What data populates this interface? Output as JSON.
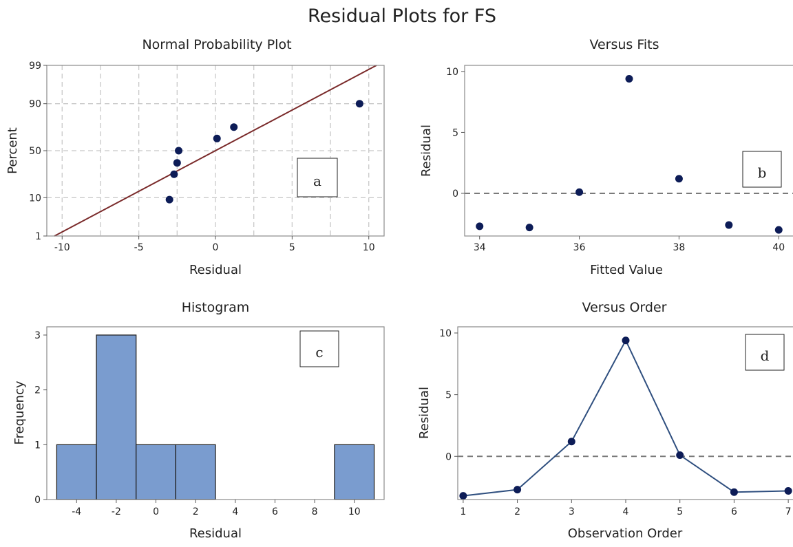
{
  "figure": {
    "title": "Residual Plots for FS"
  },
  "colors": {
    "point": "#0d1c57",
    "fit_line": "#7a2a2a",
    "bar_fill": "#7a9ccf",
    "bar_edge": "#222222",
    "line": "#2f4f7f"
  },
  "chart_data": [
    {
      "type": "scatter",
      "title": "Normal Probability Plot",
      "xlabel": "Residual",
      "ylabel": "Percent",
      "xlim": [
        -11,
        11
      ],
      "y_scale": "normal probability",
      "yticks": [
        1,
        10,
        50,
        90,
        99
      ],
      "xticks": [
        -10,
        -5,
        0,
        5,
        10
      ],
      "grid": true,
      "points": [
        {
          "x": -3.0,
          "y": 9.1
        },
        {
          "x": -2.7,
          "y": 26.0
        },
        {
          "x": -2.5,
          "y": 37.0
        },
        {
          "x": -2.4,
          "y": 50.0
        },
        {
          "x": 0.1,
          "y": 63.0
        },
        {
          "x": 1.2,
          "y": 74.0
        },
        {
          "x": 9.4,
          "y": 90.0
        }
      ],
      "fit_line": {
        "x": [
          -10.5,
          10.5
        ],
        "y": [
          1,
          99
        ]
      },
      "annotation": "a"
    },
    {
      "type": "scatter",
      "title": "Versus Fits",
      "xlabel": "Fitted Value",
      "ylabel": "Residual",
      "xlim": [
        33.7,
        40.3
      ],
      "ylim": [
        -3.5,
        10.5
      ],
      "xticks": [
        34,
        36,
        38,
        40
      ],
      "yticks": [
        0,
        5,
        10
      ],
      "reference_line": 0,
      "points": [
        {
          "x": 34,
          "y": -2.7
        },
        {
          "x": 35,
          "y": -2.8
        },
        {
          "x": 36,
          "y": 0.1
        },
        {
          "x": 37,
          "y": 9.4
        },
        {
          "x": 38,
          "y": 1.2
        },
        {
          "x": 39,
          "y": -2.6
        },
        {
          "x": 40,
          "y": -3.0
        }
      ],
      "annotation": "b"
    },
    {
      "type": "bar",
      "title": "Histogram",
      "xlabel": "Residual",
      "ylabel": "Frequency",
      "xlim": [
        -5.5,
        11.5
      ],
      "ylim": [
        0,
        3.15
      ],
      "xticks": [
        -4,
        -2,
        0,
        2,
        4,
        6,
        8,
        10
      ],
      "yticks": [
        0,
        1,
        2,
        3
      ],
      "bins": [
        {
          "center": -4,
          "count": 1
        },
        {
          "center": -2,
          "count": 3
        },
        {
          "center": 0,
          "count": 1
        },
        {
          "center": 2,
          "count": 1
        },
        {
          "center": 4,
          "count": 0
        },
        {
          "center": 6,
          "count": 0
        },
        {
          "center": 8,
          "count": 0
        },
        {
          "center": 10,
          "count": 1
        }
      ],
      "bin_width": 2,
      "annotation": "c"
    },
    {
      "type": "line",
      "title": "Versus Order",
      "xlabel": "Observation Order",
      "ylabel": "Residual",
      "xlim": [
        0.9,
        7.1
      ],
      "ylim": [
        -3.5,
        10.5
      ],
      "xticks": [
        1,
        2,
        3,
        4,
        5,
        6,
        7
      ],
      "yticks": [
        0,
        5,
        10
      ],
      "reference_line": 0,
      "x": [
        1,
        2,
        3,
        4,
        5,
        6,
        7
      ],
      "y": [
        -3.2,
        -2.7,
        1.2,
        9.4,
        0.1,
        -2.9,
        -2.8
      ],
      "annotation": "d"
    }
  ]
}
